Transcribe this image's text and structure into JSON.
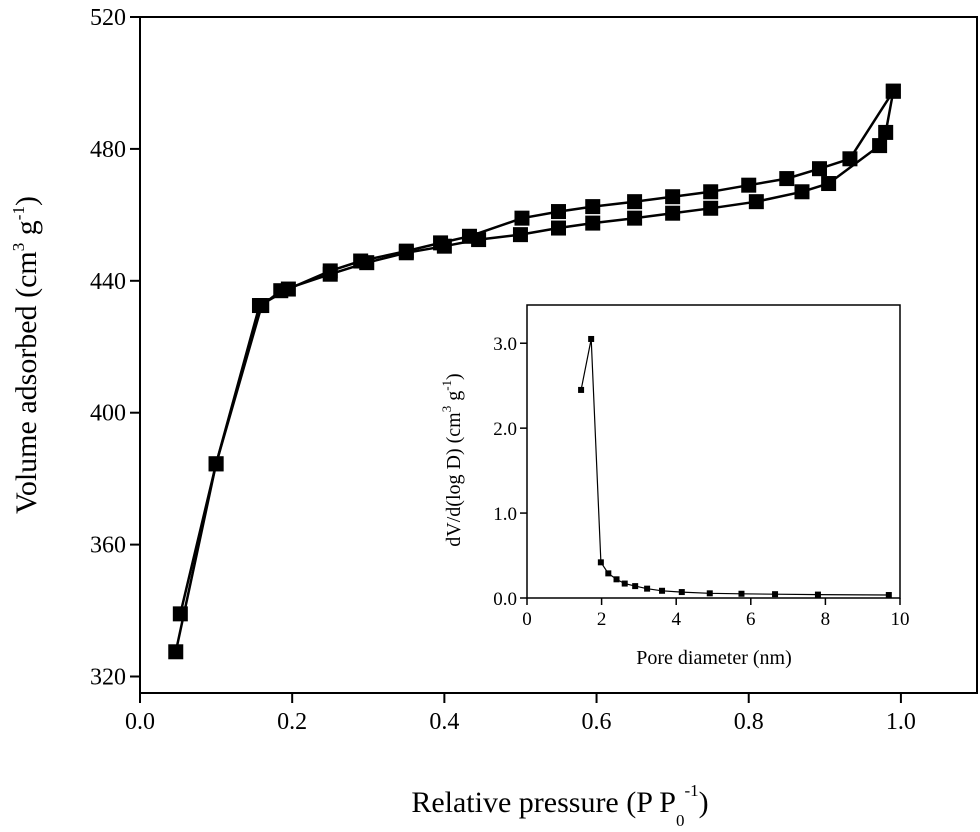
{
  "chart_data": [
    {
      "type": "scatter",
      "xlabel": "Relative pressure (P P",
      "xlabel_sub": "0",
      "xlabel_sup": "-1",
      "xlabel_end": ")",
      "ylabel": "Volume adsorbed (cm",
      "ylabel_sup1": "3",
      "ylabel_mid": " g",
      "ylabel_sup2": "-1",
      "ylabel_end": ")",
      "xlim": [
        0.0,
        1.1
      ],
      "ylim": [
        315,
        520
      ],
      "xticks": [
        "0.0",
        "0.2",
        "0.4",
        "0.6",
        "0.8",
        "1.0"
      ],
      "xtick_values": [
        0.0,
        0.2,
        0.4,
        0.6,
        0.8,
        1.0
      ],
      "yticks": [
        "320",
        "360",
        "400",
        "440",
        "480",
        "520"
      ],
      "ytick_values": [
        320,
        360,
        400,
        440,
        480,
        520
      ],
      "marker": "square",
      "series": [
        {
          "values": [
            [
              0.047,
              327.5
            ],
            [
              0.1,
              384.5
            ],
            [
              0.157,
              432.5
            ],
            [
              0.195,
              437.5
            ],
            [
              0.25,
              443.0
            ],
            [
              0.29,
              446.0
            ],
            [
              0.35,
              449.0
            ],
            [
              0.395,
              451.5
            ],
            [
              0.433,
              453.5
            ],
            [
              0.502,
              459.0
            ],
            [
              0.55,
              461.0
            ],
            [
              0.595,
              462.5
            ],
            [
              0.65,
              464.0
            ],
            [
              0.7,
              465.5
            ],
            [
              0.75,
              467.0
            ],
            [
              0.8,
              469.0
            ],
            [
              0.85,
              471.0
            ],
            [
              0.893,
              474.0
            ],
            [
              0.933,
              477.0
            ],
            [
              0.99,
              497.5
            ]
          ]
        },
        {
          "values": [
            [
              0.99,
              497.5
            ],
            [
              0.98,
              485.0
            ],
            [
              0.972,
              481.0
            ],
            [
              0.905,
              469.5
            ],
            [
              0.87,
              467.0
            ],
            [
              0.81,
              464.0
            ],
            [
              0.75,
              462.0
            ],
            [
              0.7,
              460.5
            ],
            [
              0.65,
              459.0
            ],
            [
              0.595,
              457.5
            ],
            [
              0.55,
              456.0
            ],
            [
              0.5,
              454.0
            ],
            [
              0.445,
              452.5
            ],
            [
              0.4,
              450.5
            ],
            [
              0.35,
              448.5
            ],
            [
              0.298,
              445.5
            ],
            [
              0.25,
              442.0
            ],
            [
              0.185,
              437.0
            ],
            [
              0.16,
              432.5
            ],
            [
              0.1,
              384.5
            ],
            [
              0.053,
              339.0
            ]
          ]
        }
      ]
    },
    {
      "type": "line",
      "xlabel": "Pore diameter (nm)",
      "ylabel": "dV/d(log D) (cm",
      "ylabel_sup1": "3",
      "ylabel_mid": " g",
      "ylabel_sup2": "-1",
      "ylabel_end": ")",
      "xlim": [
        0,
        10
      ],
      "ylim": [
        0.0,
        3.45
      ],
      "xticks": [
        "0",
        "2",
        "4",
        "6",
        "8",
        "10"
      ],
      "xtick_values": [
        0,
        2,
        4,
        6,
        8,
        10
      ],
      "yticks": [
        "0.0",
        "1.0",
        "2.0",
        "3.0"
      ],
      "ytick_values": [
        0.0,
        1.0,
        2.0,
        3.0
      ],
      "marker": "square",
      "series": [
        {
          "values": [
            [
              1.45,
              2.45
            ],
            [
              1.72,
              3.05
            ],
            [
              1.98,
              0.42
            ],
            [
              2.18,
              0.29
            ],
            [
              2.4,
              0.22
            ],
            [
              2.62,
              0.17
            ],
            [
              2.9,
              0.14
            ],
            [
              3.22,
              0.11
            ],
            [
              3.62,
              0.085
            ],
            [
              4.15,
              0.07
            ],
            [
              4.9,
              0.055
            ],
            [
              5.75,
              0.05
            ],
            [
              6.65,
              0.045
            ],
            [
              7.8,
              0.04
            ],
            [
              9.7,
              0.035
            ]
          ]
        }
      ]
    }
  ]
}
